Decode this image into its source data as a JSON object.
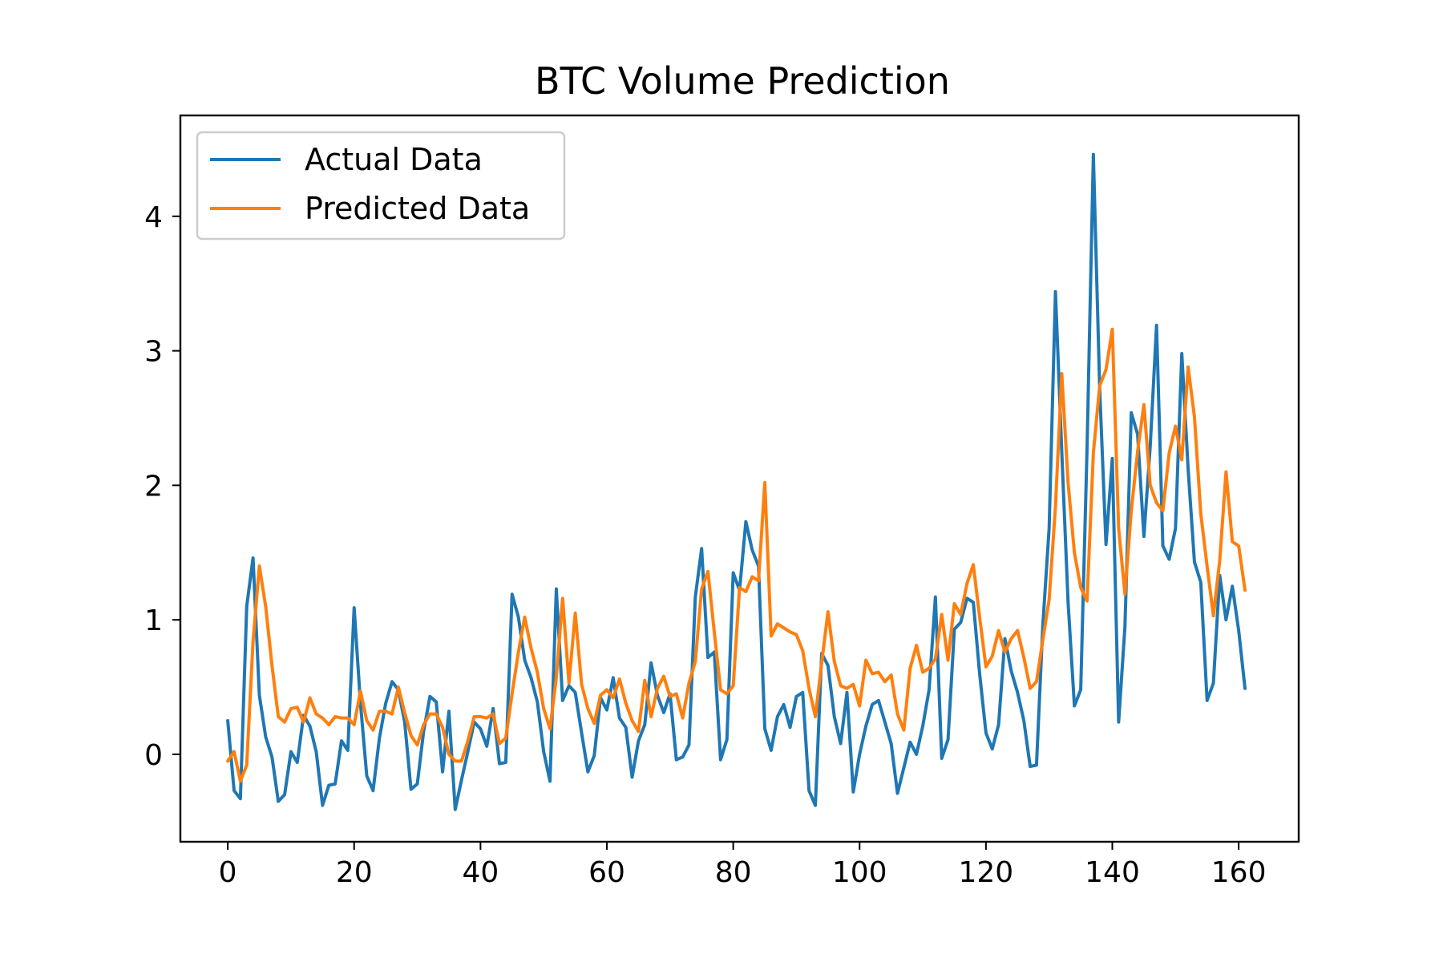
{
  "chart_data": {
    "type": "line",
    "title": "BTC Volume Prediction",
    "xlabel": "",
    "ylabel": "",
    "xlim": [
      -7.5,
      169.5
    ],
    "ylim": [
      -0.65,
      4.75
    ],
    "xticks": [
      0,
      20,
      40,
      60,
      80,
      100,
      120,
      140,
      160
    ],
    "yticks": [
      0,
      1,
      2,
      3,
      4
    ],
    "grid": false,
    "legend": {
      "placement": "top-left"
    },
    "series": [
      {
        "name": "Actual Data",
        "color": "#1f77b4",
        "values": [
          0.25,
          -0.27,
          -0.33,
          1.1,
          1.46,
          0.44,
          0.13,
          -0.02,
          -0.35,
          -0.3,
          0.02,
          -0.06,
          0.29,
          0.21,
          0.02,
          -0.38,
          -0.23,
          -0.22,
          0.1,
          0.03,
          1.09,
          0.38,
          -0.16,
          -0.27,
          0.12,
          0.38,
          0.54,
          0.48,
          0.24,
          -0.26,
          -0.22,
          0.17,
          0.43,
          0.39,
          -0.13,
          0.32,
          -0.41,
          -0.19,
          0.02,
          0.24,
          0.19,
          0.06,
          0.34,
          -0.07,
          -0.06,
          1.19,
          1.02,
          0.7,
          0.57,
          0.39,
          0.02,
          -0.2,
          1.23,
          0.4,
          0.51,
          0.46,
          0.16,
          -0.13,
          -0.01,
          0.42,
          0.33,
          0.57,
          0.27,
          0.2,
          -0.17,
          0.1,
          0.22,
          0.68,
          0.44,
          0.31,
          0.45,
          -0.04,
          -0.02,
          0.07,
          1.17,
          1.53,
          0.72,
          0.76,
          -0.04,
          0.11,
          1.35,
          1.22,
          1.73,
          1.52,
          1.4,
          0.19,
          0.03,
          0.28,
          0.37,
          0.2,
          0.43,
          0.46,
          -0.27,
          -0.38,
          0.75,
          0.66,
          0.28,
          0.08,
          0.46,
          -0.28,
          0.0,
          0.21,
          0.37,
          0.4,
          0.24,
          0.08,
          -0.29,
          -0.1,
          0.09,
          0.0,
          0.21,
          0.48,
          1.17,
          -0.03,
          0.11,
          0.93,
          0.98,
          1.16,
          1.13,
          0.6,
          0.16,
          0.04,
          0.22,
          0.86,
          0.62,
          0.46,
          0.25,
          -0.09,
          -0.08,
          0.96,
          1.68,
          3.44,
          2.25,
          1.13,
          0.36,
          0.48,
          2.27,
          4.46,
          2.72,
          1.56,
          2.2,
          0.24,
          0.95,
          2.54,
          2.38,
          1.62,
          2.29,
          3.19,
          1.55,
          1.45,
          1.68,
          2.98,
          2.12,
          1.43,
          1.28,
          0.4,
          0.53,
          1.33,
          1.0,
          1.25,
          0.92,
          0.49
        ]
      },
      {
        "name": "Predicted Data",
        "color": "#ff7f0e",
        "values": [
          -0.05,
          0.02,
          -0.2,
          -0.08,
          0.84,
          1.4,
          1.1,
          0.66,
          0.28,
          0.24,
          0.34,
          0.35,
          0.24,
          0.42,
          0.3,
          0.27,
          0.22,
          0.28,
          0.27,
          0.27,
          0.22,
          0.47,
          0.25,
          0.18,
          0.32,
          0.32,
          0.3,
          0.5,
          0.31,
          0.14,
          0.07,
          0.22,
          0.3,
          0.3,
          0.2,
          0.0,
          -0.05,
          -0.05,
          0.1,
          0.28,
          0.28,
          0.27,
          0.3,
          0.08,
          0.12,
          0.45,
          0.76,
          1.02,
          0.79,
          0.61,
          0.34,
          0.19,
          0.57,
          1.16,
          0.53,
          1.05,
          0.52,
          0.34,
          0.23,
          0.44,
          0.48,
          0.42,
          0.56,
          0.38,
          0.25,
          0.17,
          0.55,
          0.28,
          0.49,
          0.58,
          0.43,
          0.45,
          0.27,
          0.53,
          0.69,
          1.23,
          1.36,
          0.91,
          0.48,
          0.45,
          0.51,
          1.24,
          1.21,
          1.32,
          1.29,
          2.02,
          0.88,
          0.97,
          0.94,
          0.91,
          0.89,
          0.77,
          0.49,
          0.28,
          0.68,
          1.06,
          0.69,
          0.51,
          0.49,
          0.52,
          0.36,
          0.7,
          0.6,
          0.61,
          0.54,
          0.59,
          0.3,
          0.18,
          0.64,
          0.81,
          0.61,
          0.64,
          0.71,
          1.04,
          0.7,
          1.12,
          1.04,
          1.27,
          1.41,
          1.02,
          0.65,
          0.73,
          0.92,
          0.76,
          0.86,
          0.92,
          0.72,
          0.49,
          0.54,
          0.85,
          1.15,
          1.84,
          2.83,
          2.02,
          1.5,
          1.24,
          1.14,
          2.24,
          2.74,
          2.86,
          3.16,
          1.68,
          1.19,
          1.81,
          2.25,
          2.6,
          2.0,
          1.87,
          1.81,
          2.24,
          2.44,
          2.19,
          2.88,
          2.51,
          1.79,
          1.4,
          1.03,
          1.44,
          2.1,
          1.58,
          1.55,
          1.22
        ]
      }
    ]
  }
}
